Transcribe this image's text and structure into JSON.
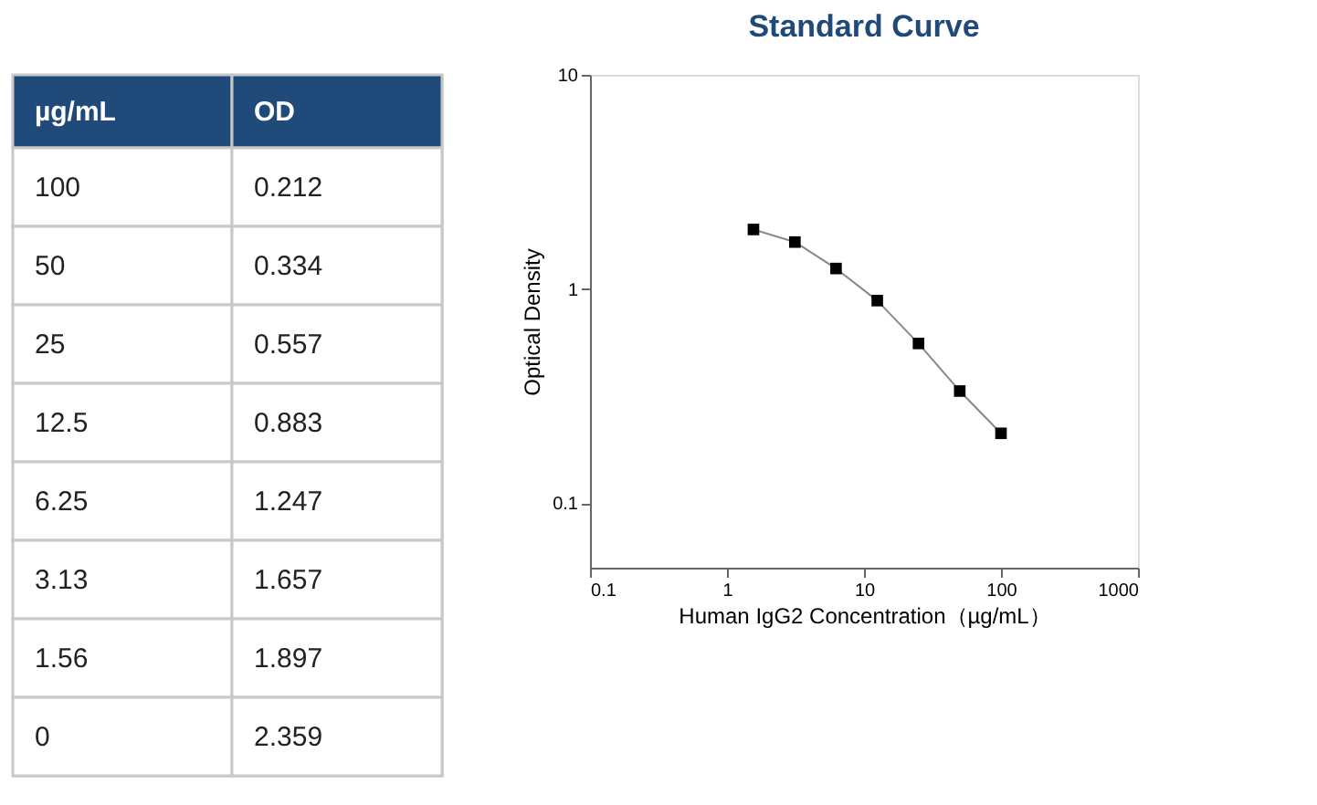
{
  "chart_data": [
    {
      "type": "other",
      "annotations": [
        "µg/mL",
        "OD",
        "100",
        "0.212",
        "50",
        "0.334",
        "25",
        "0.557",
        "12.5",
        "0.883",
        "6.25",
        "1.247",
        "3.13",
        "1.657",
        "1.56",
        "1.897",
        "0",
        "2.359"
      ]
    },
    {
      "type": "line",
      "title": "Standard Curve",
      "xlabel": "Human IgG2 Concentration（µg/mL）",
      "ylabel": "Optical  Density",
      "x": [
        100,
        50,
        25,
        12.5,
        6.25,
        3.13,
        1.56
      ],
      "series": [
        {
          "color": "#000000",
          "values": [
            0.212,
            0.334,
            0.557,
            0.883,
            1.247,
            1.657,
            1.897
          ]
        }
      ],
      "log": "xy",
      "xlim": [
        0.1,
        1000
      ],
      "xticks": [
        0.1,
        1,
        10,
        100,
        1000
      ],
      "ylim": [
        0.05,
        10
      ],
      "yticks": [
        0.1,
        1,
        10
      ],
      "grid": false,
      "marker": "square",
      "line_style": "solid"
    }
  ]
}
